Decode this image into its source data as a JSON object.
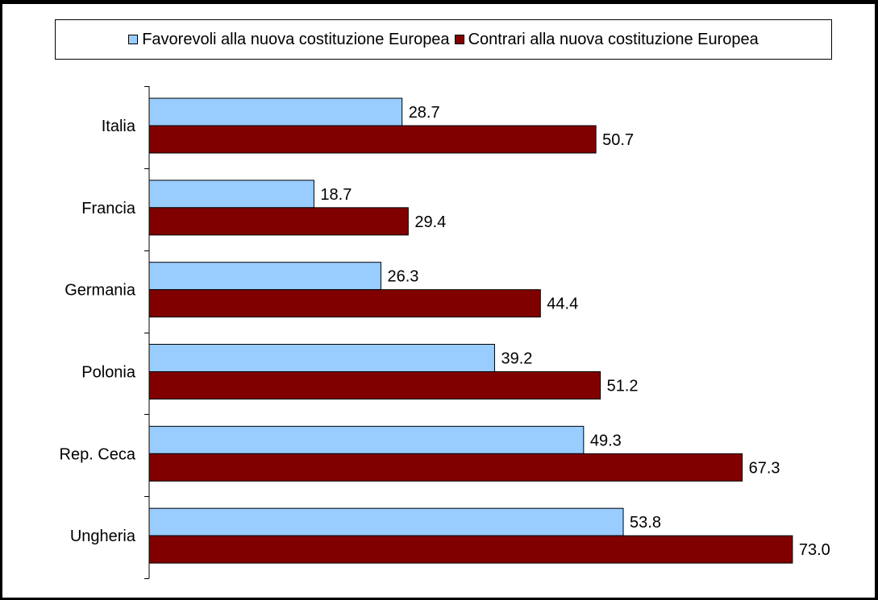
{
  "chart_data": {
    "type": "bar",
    "orientation": "horizontal",
    "categories": [
      "Italia",
      "Francia",
      "Germania",
      "Polonia",
      "Rep. Ceca",
      "Ungheria"
    ],
    "series": [
      {
        "name": "Favorevoli alla nuova costituzione Europea",
        "values": [
          28.7,
          18.7,
          26.3,
          39.2,
          49.3,
          53.8
        ],
        "value_labels": [
          "28.7",
          "18.7",
          "26.3",
          "39.2",
          "49.3",
          "53.8"
        ],
        "color": "#99ccff"
      },
      {
        "name": "Contrari alla nuova costituzione Europea",
        "values": [
          50.7,
          29.4,
          44.4,
          51.2,
          67.3,
          73.0
        ],
        "value_labels": [
          "50.7",
          "29.4",
          "44.4",
          "51.2",
          "67.3",
          "73.0"
        ],
        "color": "#800000"
      }
    ],
    "xlim": [
      0,
      75
    ],
    "legend": "top",
    "grid": false,
    "title": "",
    "xlabel": "",
    "ylabel": ""
  }
}
